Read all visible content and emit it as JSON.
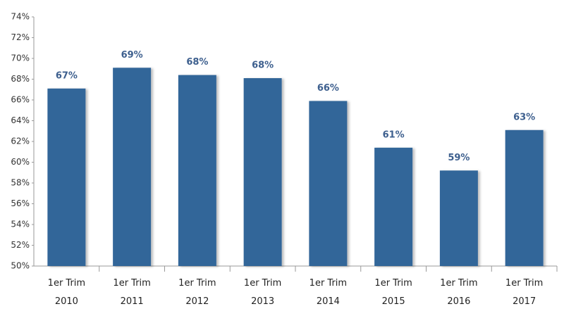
{
  "chart_data": {
    "type": "bar",
    "categories": [
      "1er Trim 2010",
      "1er Trim 2011",
      "1er Trim 2012",
      "1er Trim 2013",
      "1er Trim 2014",
      "1er Trim 2015",
      "1er Trim 2016",
      "1er Trim 2017"
    ],
    "values": [
      67.1,
      69.1,
      68.4,
      68.1,
      65.9,
      61.4,
      59.2,
      63.1
    ],
    "value_labels": [
      "67%",
      "69%",
      "68%",
      "68%",
      "66%",
      "61%",
      "59%",
      "63%"
    ],
    "color": "#336699",
    "ylim": [
      50,
      74
    ],
    "yticks": [
      {
        "value": 50,
        "label": "50%"
      },
      {
        "value": 52,
        "label": "52%"
      },
      {
        "value": 54,
        "label": "54%"
      },
      {
        "value": 56,
        "label": "56%"
      },
      {
        "value": 58,
        "label": "58%"
      },
      {
        "value": 60,
        "label": "60%"
      },
      {
        "value": 62,
        "label": "62%"
      },
      {
        "value": 64,
        "label": "64%"
      },
      {
        "value": 66,
        "label": "66%"
      },
      {
        "value": 68,
        "label": "68%"
      },
      {
        "value": 70,
        "label": "70%"
      },
      {
        "value": 72,
        "label": "72%"
      },
      {
        "value": 74,
        "label": "74%"
      }
    ],
    "grid": false
  }
}
